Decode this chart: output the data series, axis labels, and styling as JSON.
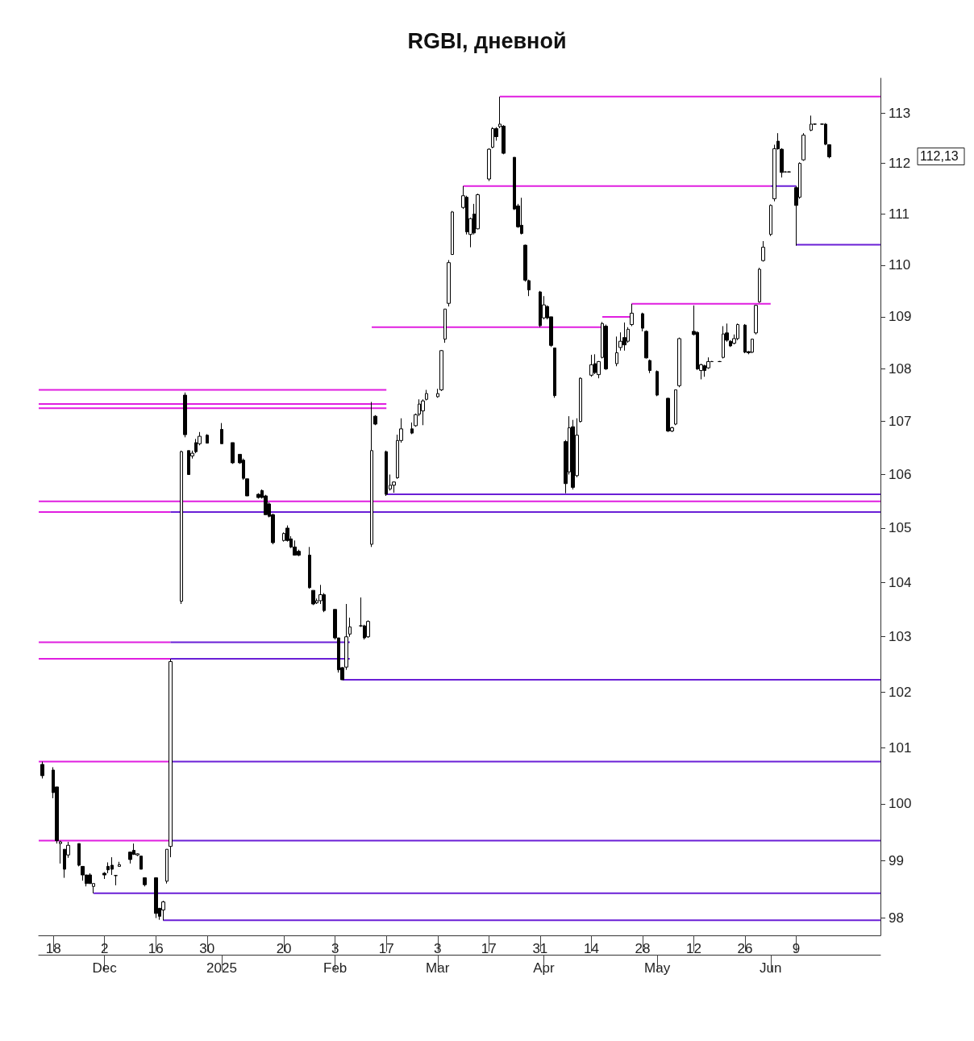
{
  "chart_data": {
    "type": "candlestick",
    "title": "RGBI, дневной",
    "color": "#000000",
    "log": true,
    "ylim": [
      97.7,
      113.7
    ],
    "yticks": [
      98,
      99,
      100,
      101,
      102,
      103,
      104,
      105,
      106,
      107,
      108,
      109,
      110,
      111,
      112,
      113
    ],
    "xlim": [
      "2024-11-14",
      "2025-07-02"
    ],
    "xticks": [
      {
        "value": "2024-11-18",
        "label": "18"
      },
      {
        "value": "2024-12-02",
        "label": "2"
      },
      {
        "value": "2024-12-16",
        "label": "16"
      },
      {
        "value": "2024-12-30",
        "label": "30"
      },
      {
        "value": "2025-01-20",
        "label": "20"
      },
      {
        "value": "2025-02-03",
        "label": "3"
      },
      {
        "value": "2025-02-17",
        "label": "17"
      },
      {
        "value": "2025-03-03",
        "label": "3"
      },
      {
        "value": "2025-03-17",
        "label": "17"
      },
      {
        "value": "2025-03-31",
        "label": "31"
      },
      {
        "value": "2025-04-14",
        "label": "14"
      },
      {
        "value": "2025-04-28",
        "label": "28"
      },
      {
        "value": "2025-05-12",
        "label": "12"
      },
      {
        "value": "2025-05-26",
        "label": "26"
      },
      {
        "value": "2025-06-09",
        "label": "9"
      }
    ],
    "x2lim": [
      "2024-11-14",
      "2025-07-02"
    ],
    "x2ticks": [
      {
        "value": "2024-12-02",
        "label": "Dec"
      },
      {
        "value": "2025-01-03",
        "label": "2025"
      },
      {
        "value": "2025-02-03",
        "label": "Feb"
      },
      {
        "value": "2025-03-03",
        "label": "Mar"
      },
      {
        "value": "2025-04-01",
        "label": "Apr"
      },
      {
        "value": "2025-05-02",
        "label": "May"
      },
      {
        "value": "2025-06-02",
        "label": "Jun"
      }
    ],
    "x": [
      "2024-11-15",
      "2024-11-18",
      "2024-11-19",
      "2024-11-20",
      "2024-11-21",
      "2024-11-22",
      "2024-11-25",
      "2024-11-26",
      "2024-11-27",
      "2024-11-28",
      "2024-11-29",
      "2024-12-02",
      "2024-12-03",
      "2024-12-04",
      "2024-12-05",
      "2024-12-06",
      "2024-12-09",
      "2024-12-10",
      "2024-12-11",
      "2024-12-12",
      "2024-12-13",
      "2024-12-16",
      "2024-12-17",
      "2024-12-18",
      "2024-12-19",
      "2024-12-20",
      "2024-12-23",
      "2024-12-24",
      "2024-12-25",
      "2024-12-26",
      "2024-12-27",
      "2024-12-28",
      "2024-12-30",
      "2025-01-03",
      "2025-01-06",
      "2025-01-08",
      "2025-01-09",
      "2025-01-10",
      "2025-01-13",
      "2025-01-14",
      "2025-01-15",
      "2025-01-16",
      "2025-01-17",
      "2025-01-20",
      "2025-01-21",
      "2025-01-22",
      "2025-01-23",
      "2025-01-24",
      "2025-01-27",
      "2025-01-28",
      "2025-01-29",
      "2025-01-30",
      "2025-01-31",
      "2025-02-03",
      "2025-02-04",
      "2025-02-05",
      "2025-02-06",
      "2025-02-07",
      "2025-02-10",
      "2025-02-11",
      "2025-02-12",
      "2025-02-13",
      "2025-02-14",
      "2025-02-17",
      "2025-02-18",
      "2025-02-19",
      "2025-02-20",
      "2025-02-21",
      "2025-02-24",
      "2025-02-25",
      "2025-02-26",
      "2025-02-27",
      "2025-02-28",
      "2025-03-03",
      "2025-03-04",
      "2025-03-05",
      "2025-03-06",
      "2025-03-07",
      "2025-03-10",
      "2025-03-11",
      "2025-03-12",
      "2025-03-13",
      "2025-03-14",
      "2025-03-17",
      "2025-03-18",
      "2025-03-19",
      "2025-03-20",
      "2025-03-21",
      "2025-03-24",
      "2025-03-25",
      "2025-03-26",
      "2025-03-27",
      "2025-03-28",
      "2025-03-31",
      "2025-04-01",
      "2025-04-02",
      "2025-04-03",
      "2025-04-04",
      "2025-04-07",
      "2025-04-08",
      "2025-04-09",
      "2025-04-10",
      "2025-04-11",
      "2025-04-14",
      "2025-04-15",
      "2025-04-16",
      "2025-04-17",
      "2025-04-18",
      "2025-04-21",
      "2025-04-22",
      "2025-04-23",
      "2025-04-24",
      "2025-04-25",
      "2025-04-28",
      "2025-04-29",
      "2025-04-30",
      "2025-05-02",
      "2025-05-05",
      "2025-05-06",
      "2025-05-07",
      "2025-05-08",
      "2025-05-12",
      "2025-05-13",
      "2025-05-14",
      "2025-05-15",
      "2025-05-16",
      "2025-05-17",
      "2025-05-19",
      "2025-05-20",
      "2025-05-21",
      "2025-05-22",
      "2025-05-23",
      "2025-05-24",
      "2025-05-26",
      "2025-05-27",
      "2025-05-28",
      "2025-05-29",
      "2025-05-30",
      "2025-05-31",
      "2025-06-02",
      "2025-06-03",
      "2025-06-04",
      "2025-06-05",
      "2025-06-06",
      "2025-06-07",
      "2025-06-09",
      "2025-06-10",
      "2025-06-11",
      "2025-06-13",
      "2025-06-14",
      "2025-06-16",
      "2025-06-17",
      "2025-06-18"
    ],
    "ohlc": [
      [
        100.7,
        100.75,
        100.45,
        100.5
      ],
      [
        100.6,
        100.65,
        100.1,
        100.2
      ],
      [
        100.3,
        100.3,
        99.3,
        99.35
      ],
      [
        99.3,
        99.35,
        98.95,
        99.33
      ],
      [
        99.2,
        99.2,
        98.7,
        98.85
      ],
      [
        99.1,
        99.33,
        99.05,
        99.27
      ],
      [
        99.3,
        99.3,
        98.9,
        98.92
      ],
      [
        98.9,
        98.9,
        98.65,
        98.75
      ],
      [
        98.75,
        98.75,
        98.55,
        98.6
      ],
      [
        98.75,
        98.78,
        98.6,
        98.6
      ],
      [
        98.55,
        98.6,
        98.43,
        98.6
      ],
      [
        98.78,
        98.8,
        98.68,
        98.75
      ],
      [
        98.9,
        98.97,
        98.78,
        98.84
      ],
      [
        98.92,
        99.06,
        98.75,
        98.85
      ],
      [
        98.74,
        98.75,
        98.57,
        98.74
      ],
      [
        98.9,
        98.98,
        98.9,
        98.93
      ],
      [
        99.15,
        99.15,
        98.95,
        99.02
      ],
      [
        99.18,
        99.3,
        99.1,
        99.11
      ],
      [
        99.1,
        99.13,
        99.08,
        99.12
      ],
      [
        99.08,
        99.08,
        98.85,
        98.85
      ],
      [
        98.7,
        98.7,
        98.55,
        98.58
      ],
      [
        98.7,
        98.7,
        98.0,
        98.08
      ],
      [
        98.17,
        98.17,
        97.97,
        98.03
      ],
      [
        98.14,
        98.3,
        97.96,
        98.28
      ],
      [
        98.64,
        99.2,
        98.6,
        99.2
      ],
      [
        99.25,
        102.6,
        99.06,
        102.55
      ],
      [
        103.65,
        106.45,
        103.6,
        106.43
      ],
      [
        107.5,
        107.55,
        106.7,
        106.75
      ],
      [
        106.45,
        106.45,
        106.0,
        106.0
      ],
      [
        106.35,
        106.45,
        106.3,
        106.4
      ],
      [
        106.6,
        106.67,
        106.4,
        106.43
      ],
      [
        106.58,
        106.8,
        106.55,
        106.72
      ],
      [
        106.74,
        106.76,
        106.59,
        106.59
      ],
      [
        106.85,
        106.97,
        106.58,
        106.58
      ],
      [
        106.6,
        106.6,
        106.2,
        106.22
      ],
      [
        106.38,
        106.38,
        106.2,
        106.22
      ],
      [
        106.27,
        106.3,
        105.9,
        105.93
      ],
      [
        105.92,
        105.92,
        105.6,
        105.6
      ],
      [
        105.63,
        105.65,
        105.55,
        105.57
      ],
      [
        105.7,
        105.72,
        105.55,
        105.57
      ],
      [
        105.6,
        105.62,
        105.25,
        105.25
      ],
      [
        105.45,
        105.48,
        105.2,
        105.22
      ],
      [
        105.25,
        105.27,
        104.7,
        104.73
      ],
      [
        104.77,
        104.92,
        104.75,
        104.9
      ],
      [
        105.0,
        105.05,
        104.75,
        104.77
      ],
      [
        104.8,
        104.85,
        104.63,
        104.65
      ],
      [
        104.65,
        104.77,
        104.5,
        104.5
      ],
      [
        104.57,
        104.6,
        104.48,
        104.5
      ],
      [
        104.5,
        104.65,
        103.88,
        103.9
      ],
      [
        103.85,
        103.85,
        103.58,
        103.6
      ],
      [
        103.62,
        103.7,
        103.6,
        103.66
      ],
      [
        103.66,
        103.95,
        103.6,
        103.77
      ],
      [
        103.77,
        103.8,
        103.45,
        103.48
      ],
      [
        103.5,
        103.5,
        102.95,
        102.98
      ],
      [
        102.98,
        102.98,
        102.35,
        102.4
      ],
      [
        102.44,
        102.45,
        102.22,
        102.22
      ],
      [
        102.45,
        103.6,
        102.4,
        103.0
      ],
      [
        103.05,
        103.35,
        103.0,
        103.18
      ],
      [
        103.2,
        103.72,
        103.18,
        103.2
      ],
      [
        103.2,
        103.22,
        102.95,
        102.98
      ],
      [
        103.0,
        103.3,
        102.98,
        103.28
      ],
      [
        104.7,
        107.37,
        104.65,
        106.45
      ],
      [
        107.1,
        107.12,
        106.93,
        106.95
      ],
      [
        106.43,
        106.45,
        105.6,
        105.63
      ],
      [
        105.73,
        106.0,
        105.7,
        105.8
      ],
      [
        105.8,
        105.87,
        105.66,
        105.86
      ],
      [
        105.94,
        106.75,
        105.92,
        106.64
      ],
      [
        106.64,
        107.06,
        106.6,
        106.86
      ],
      [
        106.86,
        106.98,
        106.76,
        106.78
      ],
      [
        106.92,
        107.15,
        106.9,
        107.13
      ],
      [
        107.14,
        107.42,
        107.1,
        107.33
      ],
      [
        107.2,
        107.42,
        106.93,
        107.39
      ],
      [
        107.42,
        107.6,
        107.4,
        107.53
      ],
      [
        107.47,
        107.62,
        107.45,
        107.53
      ],
      [
        107.6,
        108.36,
        107.58,
        108.35
      ],
      [
        108.57,
        109.15,
        108.5,
        109.15
      ],
      [
        109.26,
        110.1,
        109.2,
        110.05
      ],
      [
        110.21,
        111.06,
        110.2,
        111.04
      ],
      [
        111.13,
        111.55,
        111.1,
        111.36
      ],
      [
        111.33,
        111.36,
        110.6,
        110.65
      ],
      [
        110.6,
        110.93,
        110.35,
        110.91
      ],
      [
        111.0,
        111.2,
        110.6,
        110.63
      ],
      [
        110.71,
        111.4,
        110.7,
        111.38
      ],
      [
        111.69,
        112.3,
        111.65,
        112.28
      ],
      [
        112.32,
        112.72,
        112.3,
        112.69
      ],
      [
        112.69,
        112.72,
        112.45,
        112.53
      ],
      [
        112.73,
        113.33,
        112.7,
        112.78
      ],
      [
        112.74,
        112.76,
        112.18,
        112.2
      ],
      [
        112.12,
        112.12,
        111.08,
        111.1
      ],
      [
        111.16,
        111.2,
        110.73,
        110.75
      ],
      [
        110.78,
        111.32,
        110.6,
        110.62
      ],
      [
        110.39,
        110.4,
        109.68,
        109.71
      ],
      [
        109.7,
        109.72,
        109.4,
        109.52
      ],
      [
        109.48,
        109.5,
        108.8,
        108.83
      ],
      [
        108.98,
        109.4,
        108.95,
        109.23
      ],
      [
        109.2,
        109.22,
        108.95,
        108.98
      ],
      [
        109.0,
        109.0,
        108.42,
        108.45
      ],
      [
        108.4,
        108.4,
        107.45,
        107.49
      ],
      [
        106.62,
        106.65,
        105.65,
        105.83
      ],
      [
        106.05,
        107.1,
        106.0,
        106.88
      ],
      [
        106.9,
        107.03,
        105.72,
        105.76
      ],
      [
        105.98,
        107.06,
        105.95,
        106.74
      ],
      [
        107.0,
        107.84,
        106.98,
        107.82
      ],
      [
        107.88,
        108.27,
        107.85,
        108.08
      ],
      [
        108.1,
        108.28,
        107.9,
        107.93
      ],
      [
        107.89,
        108.15,
        107.82,
        108.14
      ],
      [
        108.22,
        108.9,
        108.2,
        108.87
      ],
      [
        108.82,
        108.85,
        107.98,
        108.0
      ],
      [
        108.1,
        108.62,
        108.05,
        108.31
      ],
      [
        108.41,
        108.7,
        108.35,
        108.53
      ],
      [
        108.6,
        108.89,
        108.35,
        108.46
      ],
      [
        108.53,
        108.8,
        108.5,
        108.76
      ],
      [
        108.85,
        109.25,
        108.82,
        109.07
      ],
      [
        109.06,
        109.08,
        108.72,
        108.78
      ],
      [
        108.72,
        108.74,
        108.2,
        108.21
      ],
      [
        108.16,
        108.18,
        107.92,
        107.97
      ],
      [
        107.95,
        107.97,
        107.48,
        107.5
      ],
      [
        107.44,
        107.45,
        106.8,
        106.82
      ],
      [
        106.82,
        106.9,
        106.8,
        106.88
      ],
      [
        106.95,
        107.6,
        106.93,
        107.6
      ],
      [
        107.68,
        108.6,
        107.65,
        108.58
      ],
      [
        108.72,
        109.22,
        108.64,
        108.66
      ],
      [
        108.7,
        108.72,
        107.98,
        108.0
      ],
      [
        107.97,
        108.1,
        107.8,
        108.08
      ],
      [
        108.06,
        108.08,
        107.85,
        107.97
      ],
      [
        108.02,
        108.22,
        108.0,
        108.14
      ],
      [
        108.14,
        108.15,
        108.13,
        108.14
      ],
      [
        108.14,
        108.15,
        108.13,
        108.14
      ],
      [
        108.22,
        108.82,
        108.2,
        108.67
      ],
      [
        108.69,
        108.87,
        108.52,
        108.55
      ],
      [
        108.53,
        108.55,
        108.42,
        108.44
      ],
      [
        108.49,
        108.66,
        108.47,
        108.58
      ],
      [
        108.58,
        108.87,
        108.55,
        108.85
      ],
      [
        108.84,
        108.86,
        108.3,
        108.32
      ],
      [
        108.33,
        108.34,
        108.28,
        108.31
      ],
      [
        108.32,
        108.58,
        108.3,
        108.57
      ],
      [
        108.69,
        109.23,
        108.66,
        109.22
      ],
      [
        109.29,
        109.95,
        109.27,
        109.92
      ],
      [
        110.09,
        110.47,
        110.07,
        110.35
      ],
      [
        110.6,
        111.19,
        110.57,
        111.17
      ],
      [
        111.3,
        112.37,
        111.25,
        112.29
      ],
      [
        112.44,
        112.6,
        112.27,
        112.29
      ],
      [
        112.28,
        112.3,
        111.72,
        111.82
      ],
      [
        111.83,
        111.84,
        111.82,
        111.83
      ],
      [
        111.83,
        111.84,
        111.82,
        111.83
      ],
      [
        111.52,
        111.55,
        110.38,
        111.17
      ],
      [
        111.33,
        112.02,
        111.3,
        112.0
      ],
      [
        112.07,
        112.6,
        112.05,
        112.56
      ],
      [
        112.66,
        112.95,
        112.64,
        112.78
      ],
      [
        112.78,
        112.79,
        112.77,
        112.78
      ],
      [
        112.78,
        112.79,
        112.77,
        112.78
      ],
      [
        112.78,
        112.8,
        112.36,
        112.38
      ],
      [
        112.37,
        112.38,
        112.1,
        112.13
      ]
    ],
    "series": [
      {
        "type": "line",
        "color": "#e01ee0",
        "x": [
          "2025-03-20",
          "2025-07-02"
        ],
        "values": [
          113.33,
          113.33
        ]
      },
      {
        "type": "line",
        "color": "#e01ee0",
        "x": [
          "2025-03-10",
          "2025-06-02"
        ],
        "values": [
          111.55,
          111.55
        ]
      },
      {
        "type": "line",
        "color": "#6a1fd6",
        "x": [
          "2025-06-02",
          "2025-06-09"
        ],
        "values": [
          111.55,
          111.55
        ]
      },
      {
        "type": "line",
        "color": "#6a1fd6",
        "x": [
          "2025-06-09",
          "2025-07-02"
        ],
        "values": [
          110.4,
          110.4
        ]
      },
      {
        "type": "line",
        "color": "#e01ee0",
        "x": [
          "2025-04-25",
          "2025-06-02"
        ],
        "values": [
          109.25,
          109.25
        ]
      },
      {
        "type": "line",
        "color": "#e01ee0",
        "x": [
          "2025-04-17",
          "2025-04-25"
        ],
        "values": [
          109.0,
          109.0
        ]
      },
      {
        "type": "line",
        "color": "#e01ee0",
        "x": [
          "2025-02-13",
          "2025-04-17"
        ],
        "values": [
          108.8,
          108.8
        ]
      },
      {
        "type": "line",
        "color": "#e01ee0",
        "x": [
          "2024-11-14",
          "2025-02-17"
        ],
        "values": [
          107.6,
          107.6
        ]
      },
      {
        "type": "line",
        "color": "#e01ee0",
        "x": [
          "2024-11-14",
          "2025-02-17"
        ],
        "values": [
          107.33,
          107.33
        ]
      },
      {
        "type": "line",
        "color": "#e01ee0",
        "x": [
          "2024-11-14",
          "2025-02-17"
        ],
        "values": [
          107.25,
          107.25
        ]
      },
      {
        "type": "line",
        "color": "#6a1fd6",
        "x": [
          "2025-02-17",
          "2025-07-02"
        ],
        "values": [
          105.63,
          105.63
        ]
      },
      {
        "type": "line",
        "color": "#e01ee0",
        "x": [
          "2024-11-14",
          "2025-07-02"
        ],
        "values": [
          105.5,
          105.5
        ]
      },
      {
        "type": "line",
        "color": "#e01ee0",
        "x": [
          "2024-11-14",
          "2024-12-20"
        ],
        "values": [
          105.3,
          105.3
        ]
      },
      {
        "type": "line",
        "color": "#6a1fd6",
        "x": [
          "2024-12-20",
          "2025-07-02"
        ],
        "values": [
          105.3,
          105.3
        ]
      },
      {
        "type": "line",
        "color": "#e01ee0",
        "x": [
          "2024-11-14",
          "2024-12-20"
        ],
        "values": [
          102.9,
          102.9
        ]
      },
      {
        "type": "line",
        "color": "#6a1fd6",
        "x": [
          "2024-12-20",
          "2025-02-07"
        ],
        "values": [
          102.9,
          102.9
        ]
      },
      {
        "type": "line",
        "color": "#e01ee0",
        "x": [
          "2024-11-14",
          "2024-12-20"
        ],
        "values": [
          102.6,
          102.6
        ]
      },
      {
        "type": "line",
        "color": "#6a1fd6",
        "x": [
          "2024-12-20",
          "2025-02-07"
        ],
        "values": [
          102.6,
          102.6
        ]
      },
      {
        "type": "line",
        "color": "#6a1fd6",
        "x": [
          "2025-02-05",
          "2025-07-02"
        ],
        "values": [
          102.22,
          102.22
        ]
      },
      {
        "type": "line",
        "color": "#e01ee0",
        "x": [
          "2024-11-14",
          "2024-12-20"
        ],
        "values": [
          100.75,
          100.75
        ]
      },
      {
        "type": "line",
        "color": "#6a1fd6",
        "x": [
          "2024-12-20",
          "2025-07-02"
        ],
        "values": [
          100.75,
          100.75
        ]
      },
      {
        "type": "line",
        "color": "#e01ee0",
        "x": [
          "2024-11-14",
          "2024-12-20"
        ],
        "values": [
          99.35,
          99.35
        ]
      },
      {
        "type": "line",
        "color": "#6a1fd6",
        "x": [
          "2024-12-20",
          "2025-07-02"
        ],
        "values": [
          99.35,
          99.35
        ]
      },
      {
        "type": "line",
        "color": "#6a1fd6",
        "x": [
          "2024-11-29",
          "2025-07-02"
        ],
        "values": [
          98.43,
          98.43
        ]
      },
      {
        "type": "line",
        "color": "#6a1fd6",
        "x": [
          "2024-12-18",
          "2025-07-02"
        ],
        "values": [
          97.96,
          97.96
        ]
      }
    ],
    "annotations": [
      "112,13"
    ]
  }
}
